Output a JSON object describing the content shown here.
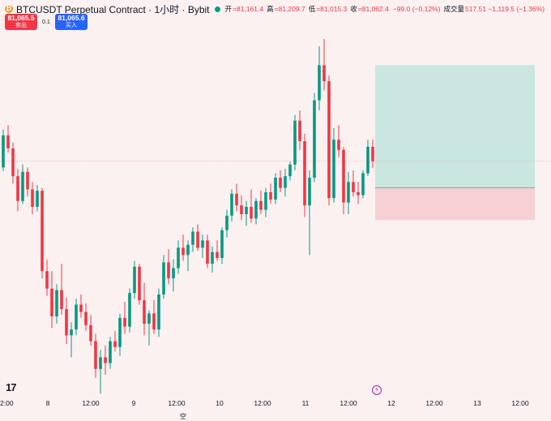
{
  "header": {
    "symbol_title": "BTCUSDT Perpetual Contract · 1小时 · Bybit",
    "ohlc": [
      {
        "label": "开",
        "value": "=81,161.4"
      },
      {
        "label": "高",
        "value": "=81,209.7"
      },
      {
        "label": "低",
        "value": "=81,015.3"
      },
      {
        "label": "收",
        "value": "=81,062.4"
      },
      {
        "label": "",
        "value": "−99.0 (−0.12%)"
      },
      {
        "label": "成交量",
        "value": "517.51  −1,119.5 (−1.36%)"
      }
    ]
  },
  "trade": {
    "sell_price": "81,065.5",
    "sell_label": "卖出",
    "spread": "0.1",
    "buy_price": "81,065.6",
    "buy_label": "买入"
  },
  "logo": "17",
  "x_axis": {
    "ticks": [
      "2:00",
      "8",
      "12:00",
      "9",
      "12:00",
      "10",
      "12:00",
      "11",
      "12:00",
      "12",
      "12:00",
      "13",
      "12:00"
    ]
  },
  "bottom_partial_label": "空",
  "colors": {
    "up": "#089981",
    "down": "#f23645",
    "background": "#fbf1f1",
    "profit_zone": "#c9e6e0",
    "loss_zone": "#f6d0d5"
  },
  "icons": [
    "bitcoin-coin-icon",
    "market-open-dot-icon",
    "tradingview-logo-icon",
    "lightning-icon"
  ],
  "chart_data": {
    "type": "candlestick",
    "interval": "1h",
    "series": [
      {
        "name": "",
        "candles": [
          [
            81020,
            81280,
            80995,
            81240
          ],
          [
            81240,
            81310,
            81120,
            81150
          ],
          [
            81150,
            81190,
            80910,
            80960
          ],
          [
            80960,
            81010,
            80720,
            80790
          ],
          [
            80790,
            81040,
            80770,
            80990
          ],
          [
            80990,
            81020,
            80820,
            80870
          ],
          [
            80870,
            80920,
            80700,
            80750
          ],
          [
            80750,
            80900,
            80720,
            80860
          ],
          [
            80860,
            80880,
            80260,
            80310
          ],
          [
            80310,
            80390,
            80140,
            80190
          ],
          [
            80190,
            80310,
            79920,
            80000
          ],
          [
            80000,
            80220,
            79950,
            80180
          ],
          [
            80180,
            80360,
            80010,
            80050
          ],
          [
            80050,
            80130,
            79810,
            79870
          ],
          [
            79870,
            79960,
            79720,
            79910
          ],
          [
            79910,
            80120,
            79870,
            80080
          ],
          [
            80080,
            80150,
            79990,
            80030
          ],
          [
            80030,
            80090,
            79900,
            79940
          ],
          [
            79940,
            80010,
            79800,
            79830
          ],
          [
            79830,
            79880,
            79580,
            79640
          ],
          [
            79640,
            79770,
            79470,
            79720
          ],
          [
            79720,
            79800,
            79600,
            79680
          ],
          [
            79680,
            79860,
            79640,
            79830
          ],
          [
            79830,
            79900,
            79760,
            79790
          ],
          [
            79790,
            80020,
            79730,
            79990
          ],
          [
            79990,
            80100,
            79880,
            79930
          ],
          [
            79930,
            80190,
            79890,
            80160
          ],
          [
            80160,
            80380,
            80120,
            80340
          ],
          [
            80340,
            80360,
            80080,
            80110
          ],
          [
            80110,
            80230,
            79870,
            79950
          ],
          [
            79950,
            80040,
            79800,
            80020
          ],
          [
            80020,
            80110,
            79880,
            79910
          ],
          [
            79910,
            80190,
            79860,
            80150
          ],
          [
            80150,
            80420,
            80120,
            80370
          ],
          [
            80370,
            80460,
            80220,
            80260
          ],
          [
            80260,
            80390,
            80170,
            80330
          ],
          [
            80330,
            80520,
            80290,
            80470
          ],
          [
            80470,
            80560,
            80380,
            80420
          ],
          [
            80420,
            80520,
            80310,
            80490
          ],
          [
            80490,
            80610,
            80440,
            80580
          ],
          [
            80580,
            80630,
            80450,
            80470
          ],
          [
            80470,
            80560,
            80400,
            80520
          ],
          [
            80520,
            80560,
            80330,
            80360
          ],
          [
            80360,
            80480,
            80300,
            80440
          ],
          [
            80440,
            80520,
            80380,
            80400
          ],
          [
            80400,
            80610,
            80360,
            80590
          ],
          [
            80590,
            80730,
            80540,
            80690
          ],
          [
            80690,
            80870,
            80650,
            80840
          ],
          [
            80840,
            80910,
            80720,
            80760
          ],
          [
            80760,
            80830,
            80660,
            80700
          ],
          [
            80700,
            80790,
            80620,
            80750
          ],
          [
            80750,
            80870,
            80640,
            80670
          ],
          [
            80670,
            80810,
            80630,
            80790
          ],
          [
            80790,
            80860,
            80700,
            80730
          ],
          [
            80730,
            80880,
            80680,
            80850
          ],
          [
            80850,
            80910,
            80770,
            80800
          ],
          [
            80800,
            80980,
            80770,
            80950
          ],
          [
            80950,
            81000,
            80850,
            80880
          ],
          [
            80880,
            81010,
            80820,
            80960
          ],
          [
            80960,
            81060,
            80930,
            81040
          ],
          [
            81040,
            81380,
            81000,
            81340
          ],
          [
            81340,
            81410,
            81140,
            81200
          ],
          [
            81200,
            81250,
            80680,
            80760
          ],
          [
            80760,
            81000,
            80420,
            80950
          ],
          [
            80950,
            81530,
            80920,
            81480
          ],
          [
            81480,
            81850,
            81410,
            81720
          ],
          [
            81720,
            81900,
            81550,
            81610
          ],
          [
            81610,
            81650,
            80760,
            80810
          ],
          [
            80810,
            81290,
            80780,
            81210
          ],
          [
            81210,
            81310,
            81090,
            81140
          ],
          [
            81140,
            81160,
            80700,
            80780
          ],
          [
            80780,
            80990,
            80700,
            80920
          ],
          [
            80920,
            81000,
            80820,
            80850
          ],
          [
            80850,
            80920,
            80770,
            80830
          ],
          [
            80830,
            81000,
            80810,
            80980
          ],
          [
            80980,
            81210,
            80960,
            81161.4
          ],
          [
            81161.4,
            81209.7,
            81015.3,
            81062.4
          ]
        ]
      }
    ],
    "y_range": [
      79500,
      82000
    ],
    "x_labels": [
      "2:00",
      "8",
      "12:00",
      "9",
      "12:00",
      "10",
      "12:00",
      "11",
      "12:00",
      "12",
      "12:00",
      "13",
      "12:00"
    ],
    "grid": false,
    "position_tool": {
      "entry": 80880,
      "take_profit": 81720,
      "stop_loss": 80660
    }
  }
}
